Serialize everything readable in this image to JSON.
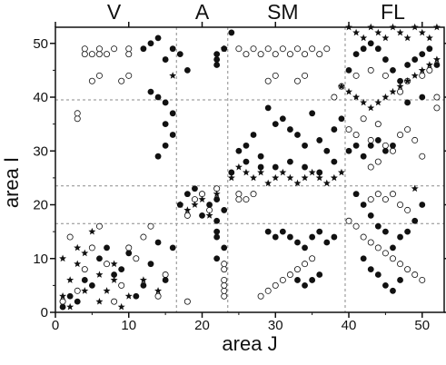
{
  "chart_data": {
    "type": "scatter",
    "title": "",
    "xlabel": "area J",
    "ylabel": "area I",
    "xlim": [
      0,
      53
    ],
    "ylim": [
      0,
      53
    ],
    "xticks": [
      "0",
      "10",
      "20",
      "30",
      "40",
      "50"
    ],
    "yticks": [
      "0",
      "10",
      "20",
      "30",
      "40",
      "50"
    ],
    "region_labels": [
      {
        "text": "V",
        "x": 8
      },
      {
        "text": "A",
        "x": 20
      },
      {
        "text": "SM",
        "x": 31
      },
      {
        "text": "FL",
        "x": 46
      }
    ],
    "dashed_boundaries": {
      "x": [
        16.5,
        23.5,
        39.5
      ],
      "y": [
        16.5,
        23.5,
        39.5
      ]
    },
    "marker_legend": {
      "open": "open circle",
      "filled": "filled circle",
      "star": "star"
    },
    "series": [
      {
        "name": "open",
        "points": [
          [
            1,
            2
          ],
          [
            3,
            4
          ],
          [
            4,
            8
          ],
          [
            5,
            12
          ],
          [
            6,
            16
          ],
          [
            8,
            2
          ],
          [
            9,
            5
          ],
          [
            11,
            10
          ],
          [
            12,
            14
          ],
          [
            14,
            3
          ],
          [
            15,
            7
          ],
          [
            13,
            16
          ],
          [
            10,
            12
          ],
          [
            7,
            9
          ],
          [
            2,
            14
          ],
          [
            4,
            48
          ],
          [
            5,
            48
          ],
          [
            6,
            48
          ],
          [
            7,
            48
          ],
          [
            10,
            48
          ],
          [
            4,
            49
          ],
          [
            6,
            49
          ],
          [
            8,
            49
          ],
          [
            10,
            49
          ],
          [
            5,
            43
          ],
          [
            6,
            44
          ],
          [
            9,
            43
          ],
          [
            10,
            44
          ],
          [
            3,
            36
          ],
          [
            3,
            37
          ],
          [
            18,
            18
          ],
          [
            19,
            21
          ],
          [
            20,
            22
          ],
          [
            21,
            19
          ],
          [
            22,
            23
          ],
          [
            18,
            2
          ],
          [
            23,
            3
          ],
          [
            23,
            4
          ],
          [
            23,
            5
          ],
          [
            23,
            6
          ],
          [
            23,
            8
          ],
          [
            23,
            9
          ],
          [
            25,
            49
          ],
          [
            26,
            48
          ],
          [
            27,
            49
          ],
          [
            28,
            48
          ],
          [
            29,
            49
          ],
          [
            30,
            48
          ],
          [
            31,
            49
          ],
          [
            32,
            48
          ],
          [
            33,
            49
          ],
          [
            34,
            48
          ],
          [
            35,
            49
          ],
          [
            36,
            48
          ],
          [
            37,
            49
          ],
          [
            29,
            43
          ],
          [
            30,
            44
          ],
          [
            33,
            43
          ],
          [
            34,
            44
          ],
          [
            25,
            21
          ],
          [
            25,
            22
          ],
          [
            26,
            21
          ],
          [
            27,
            22
          ],
          [
            28,
            3
          ],
          [
            29,
            4
          ],
          [
            30,
            5
          ],
          [
            31,
            6
          ],
          [
            32,
            7
          ],
          [
            33,
            8
          ],
          [
            34,
            9
          ],
          [
            35,
            10
          ],
          [
            40,
            34
          ],
          [
            41,
            33
          ],
          [
            42,
            36
          ],
          [
            43,
            32
          ],
          [
            44,
            35
          ],
          [
            45,
            31
          ],
          [
            46,
            30
          ],
          [
            47,
            33
          ],
          [
            48,
            34
          ],
          [
            49,
            32
          ],
          [
            50,
            29
          ],
          [
            44,
            28
          ],
          [
            43,
            27
          ],
          [
            40,
            17
          ],
          [
            41,
            16
          ],
          [
            42,
            14
          ],
          [
            43,
            13
          ],
          [
            44,
            12
          ],
          [
            45,
            11
          ],
          [
            46,
            10
          ],
          [
            47,
            9
          ],
          [
            48,
            8
          ],
          [
            49,
            7
          ],
          [
            50,
            6
          ],
          [
            43,
            21
          ],
          [
            44,
            22
          ],
          [
            45,
            21
          ],
          [
            46,
            22
          ],
          [
            47,
            20
          ],
          [
            48,
            19
          ],
          [
            38,
            40
          ],
          [
            39,
            42
          ],
          [
            41,
            44
          ],
          [
            43,
            45
          ],
          [
            45,
            44
          ],
          [
            47,
            41
          ],
          [
            48,
            43
          ],
          [
            50,
            44
          ],
          [
            51,
            45
          ],
          [
            52,
            40
          ],
          [
            52,
            38
          ]
        ]
      },
      {
        "name": "filled",
        "points": [
          [
            1,
            1
          ],
          [
            2,
            3
          ],
          [
            3,
            2
          ],
          [
            4,
            6
          ],
          [
            5,
            5
          ],
          [
            6,
            10
          ],
          [
            7,
            12
          ],
          [
            8,
            7
          ],
          [
            9,
            8
          ],
          [
            10,
            11
          ],
          [
            11,
            3
          ],
          [
            12,
            5
          ],
          [
            13,
            9
          ],
          [
            14,
            13
          ],
          [
            15,
            6
          ],
          [
            16,
            12
          ],
          [
            12,
            49
          ],
          [
            13,
            50
          ],
          [
            14,
            51
          ],
          [
            15,
            47
          ],
          [
            16,
            49
          ],
          [
            17,
            48
          ],
          [
            18,
            45
          ],
          [
            13,
            41
          ],
          [
            14,
            40
          ],
          [
            15,
            39
          ],
          [
            16,
            37
          ],
          [
            15,
            35
          ],
          [
            16,
            33
          ],
          [
            15,
            31
          ],
          [
            14,
            29
          ],
          [
            17,
            20
          ],
          [
            18,
            22
          ],
          [
            19,
            23
          ],
          [
            20,
            18
          ],
          [
            21,
            20
          ],
          [
            22,
            21
          ],
          [
            23,
            19
          ],
          [
            22,
            17
          ],
          [
            22,
            15
          ],
          [
            22,
            14
          ],
          [
            23,
            12
          ],
          [
            22,
            10
          ],
          [
            22,
            47
          ],
          [
            22,
            46
          ],
          [
            23,
            49
          ],
          [
            22,
            48
          ],
          [
            24,
            52
          ],
          [
            24,
            26
          ],
          [
            25,
            30
          ],
          [
            26,
            31
          ],
          [
            27,
            33
          ],
          [
            28,
            29
          ],
          [
            29,
            38
          ],
          [
            30,
            35
          ],
          [
            31,
            36
          ],
          [
            32,
            34
          ],
          [
            33,
            33
          ],
          [
            34,
            31
          ],
          [
            35,
            37
          ],
          [
            36,
            32
          ],
          [
            37,
            30
          ],
          [
            38,
            34
          ],
          [
            39,
            36
          ],
          [
            26,
            28
          ],
          [
            28,
            27
          ],
          [
            30,
            27
          ],
          [
            32,
            28
          ],
          [
            34,
            27
          ],
          [
            36,
            26
          ],
          [
            38,
            28
          ],
          [
            29,
            15
          ],
          [
            30,
            14
          ],
          [
            31,
            15
          ],
          [
            32,
            14
          ],
          [
            33,
            13
          ],
          [
            34,
            12
          ],
          [
            35,
            14
          ],
          [
            36,
            15
          ],
          [
            37,
            13
          ],
          [
            38,
            14
          ],
          [
            33,
            6
          ],
          [
            34,
            5
          ],
          [
            35,
            6
          ],
          [
            36,
            7
          ],
          [
            40,
            45
          ],
          [
            41,
            48
          ],
          [
            42,
            49
          ],
          [
            43,
            50
          ],
          [
            44,
            49
          ],
          [
            45,
            47
          ],
          [
            46,
            45
          ],
          [
            47,
            43
          ],
          [
            48,
            46
          ],
          [
            49,
            47
          ],
          [
            50,
            48
          ],
          [
            51,
            49
          ],
          [
            52,
            46
          ],
          [
            50,
            40
          ],
          [
            48,
            39
          ],
          [
            41,
            22
          ],
          [
            42,
            20
          ],
          [
            43,
            18
          ],
          [
            44,
            16
          ],
          [
            45,
            15
          ],
          [
            46,
            12
          ],
          [
            47,
            14
          ],
          [
            48,
            15
          ],
          [
            49,
            17
          ],
          [
            50,
            20
          ],
          [
            42,
            10
          ],
          [
            43,
            8
          ],
          [
            44,
            7
          ],
          [
            45,
            5
          ],
          [
            46,
            4
          ],
          [
            47,
            6
          ],
          [
            40,
            30
          ],
          [
            41,
            31
          ],
          [
            42,
            29
          ],
          [
            43,
            31
          ],
          [
            44,
            32
          ],
          [
            45,
            30
          ],
          [
            46,
            31
          ]
        ]
      },
      {
        "name": "star",
        "points": [
          [
            1,
            3
          ],
          [
            2,
            6
          ],
          [
            3,
            9
          ],
          [
            4,
            11
          ],
          [
            5,
            15
          ],
          [
            6,
            2
          ],
          [
            7,
            4
          ],
          [
            8,
            6
          ],
          [
            9,
            1
          ],
          [
            10,
            3
          ],
          [
            12,
            6
          ],
          [
            14,
            4
          ],
          [
            3,
            12
          ],
          [
            1,
            10
          ],
          [
            2,
            1
          ],
          [
            4,
            4
          ],
          [
            6,
            7
          ],
          [
            8,
            9
          ],
          [
            17,
            20
          ],
          [
            18,
            19
          ],
          [
            19,
            20
          ],
          [
            20,
            21
          ],
          [
            21,
            18
          ],
          [
            22,
            22
          ],
          [
            24,
            25
          ],
          [
            25,
            27
          ],
          [
            26,
            26
          ],
          [
            27,
            25
          ],
          [
            28,
            26
          ],
          [
            29,
            24
          ],
          [
            30,
            25
          ],
          [
            31,
            26
          ],
          [
            32,
            25
          ],
          [
            33,
            24
          ],
          [
            34,
            25
          ],
          [
            35,
            26
          ],
          [
            36,
            25
          ],
          [
            37,
            24
          ],
          [
            38,
            25
          ],
          [
            39,
            26
          ],
          [
            39,
            42
          ],
          [
            40,
            41
          ],
          [
            41,
            40
          ],
          [
            42,
            39
          ],
          [
            43,
            38
          ],
          [
            44,
            39
          ],
          [
            45,
            40
          ],
          [
            46,
            41
          ],
          [
            47,
            42
          ],
          [
            48,
            43
          ],
          [
            49,
            44
          ],
          [
            50,
            45
          ],
          [
            51,
            46
          ],
          [
            52,
            47
          ],
          [
            40,
            53
          ],
          [
            41,
            52
          ],
          [
            42,
            51
          ],
          [
            43,
            53
          ],
          [
            44,
            52
          ],
          [
            45,
            51
          ],
          [
            46,
            53
          ],
          [
            47,
            52
          ],
          [
            48,
            51
          ],
          [
            49,
            53
          ],
          [
            50,
            52
          ],
          [
            51,
            51
          ],
          [
            52,
            53
          ],
          [
            16,
            44
          ],
          [
            23,
            49
          ],
          [
            49,
            23
          ]
        ]
      }
    ]
  }
}
